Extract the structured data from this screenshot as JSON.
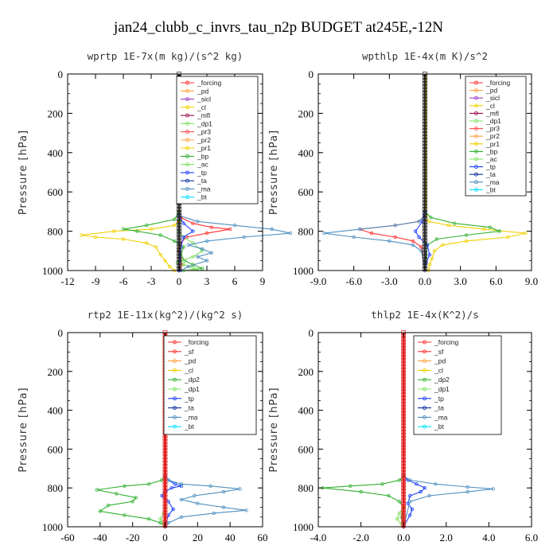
{
  "title": "jan24_clubb_c_invrs_tau_n2p  BUDGET at245E,-12N",
  "colors": {
    "forcing": "#000000",
    "pd": "#c8a2e8",
    "sicl": "#9a40c8",
    "cl": "#8a2090",
    "mfl": "#9a1050",
    "dp1": "#ff3030",
    "pr3": "#ff5050",
    "pr2": "#ffa040",
    "pr1": "#f0d000",
    "bp": "#30b030",
    "ac": "#80e060",
    "tp": "#2040ff",
    "ta": "#1030a0",
    "ma": "#5090c0",
    "bt": "#00e0ff",
    "sf": "#ff2020",
    "pd2": "#ffa040",
    "cl2": "#f0d000",
    "dp2": "#30b030",
    "dp1b": "#80e060"
  },
  "chart_data": [
    {
      "type": "line",
      "title": "wprtp   1E-7x(m kg)/(s^2 kg)",
      "ylabel": "Pressure [hPa]",
      "xlim": [
        -12,
        9
      ],
      "ylim": [
        1000,
        0
      ],
      "xticks": [
        -12,
        -9,
        -6,
        -3,
        0,
        3,
        6,
        9
      ],
      "xtick_labels": [
        "-12",
        "-9",
        "-6",
        "-3",
        "0",
        "3",
        "6",
        "9"
      ],
      "yticks": [
        0,
        200,
        400,
        600,
        800,
        1000
      ],
      "ytick_labels": [
        "0",
        "200",
        "400",
        "600",
        "800",
        "1000"
      ],
      "legend_position": "top-right",
      "legend": [
        "_forcing",
        "_pd",
        "_sicl",
        "_cl",
        "_mfl",
        "_dp1",
        "_pr3",
        "_pr2",
        "_pr1",
        "_bp",
        "_ac",
        "_tp",
        "_ta",
        "_ma",
        "_bt"
      ],
      "series": [
        {
          "name": "_forcing",
          "color": "forcing",
          "x": [
            0,
            0
          ],
          "y": [
            0,
            1000
          ]
        },
        {
          "name": "_pd",
          "color": "pd",
          "x": [
            0,
            0
          ],
          "y": [
            0,
            1000
          ]
        },
        {
          "name": "_dp1",
          "color": "dp1",
          "x": [
            0,
            0,
            0.2,
            1.5,
            3.5,
            5.5,
            3.0,
            0.8,
            0.2,
            0,
            0.2,
            0.3,
            0.1,
            0
          ],
          "y": [
            0,
            700,
            730,
            760,
            780,
            790,
            810,
            830,
            860,
            900,
            940,
            970,
            990,
            1000
          ]
        },
        {
          "name": "_pr1",
          "color": "pr1",
          "x": [
            0,
            0,
            -0.5,
            -3,
            -7,
            -10.5,
            -9,
            -6,
            -3.5,
            -2.5,
            -2.0,
            -1.5,
            -1.0,
            -0.5
          ],
          "y": [
            0,
            750,
            770,
            790,
            800,
            820,
            830,
            840,
            860,
            880,
            920,
            950,
            980,
            1000
          ]
        },
        {
          "name": "_bp",
          "color": "bp",
          "x": [
            0,
            0,
            -0.5,
            -3.5,
            -6,
            -4.5,
            -2,
            -0.5,
            0.5,
            0.2,
            0.6,
            1.5,
            2.5,
            0.5
          ],
          "y": [
            0,
            700,
            740,
            770,
            790,
            800,
            820,
            850,
            880,
            920,
            950,
            970,
            990,
            1000
          ]
        },
        {
          "name": "_ac",
          "color": "ac",
          "x": [
            0,
            0,
            0.5,
            1.5,
            2.5,
            1.5,
            0.3,
            -0.2,
            0.5,
            1.5,
            2.0,
            0.5
          ],
          "y": [
            0,
            800,
            830,
            860,
            900,
            930,
            950,
            960,
            970,
            985,
            995,
            1000
          ]
        },
        {
          "name": "_tp",
          "color": "tp",
          "x": [
            0,
            0,
            0.5,
            1.5,
            0.5,
            0.2,
            0.1,
            0
          ],
          "y": [
            0,
            720,
            760,
            800,
            830,
            880,
            950,
            1000
          ]
        },
        {
          "name": "_ma",
          "color": "ma",
          "x": [
            0,
            0,
            2,
            6,
            10,
            12,
            7,
            3,
            1,
            2.5,
            3.5,
            2.0,
            3.0,
            1.0,
            0.2
          ],
          "y": [
            0,
            720,
            750,
            770,
            790,
            810,
            830,
            850,
            870,
            890,
            910,
            930,
            950,
            980,
            1000
          ]
        }
      ]
    },
    {
      "type": "line",
      "title": "wpthlp   1E-4x(m K)/s^2",
      "ylabel": "Pressure [hPa]",
      "xlim": [
        -9,
        9
      ],
      "ylim": [
        1000,
        0
      ],
      "xticks": [
        -9,
        -6,
        -3,
        0,
        3,
        6,
        9
      ],
      "xtick_labels": [
        "-9.0",
        "-6.0",
        "-3.0",
        "0.0",
        "3.0",
        "6.0",
        "9.0"
      ],
      "yticks": [
        0,
        200,
        400,
        600,
        800,
        1000
      ],
      "ytick_labels": [
        "0",
        "200",
        "400",
        "600",
        "800",
        "1000"
      ],
      "legend_position": "top-right",
      "legend": [
        "_forcing",
        "_pd",
        "_sicl",
        "_cl",
        "_mfl",
        "_dp1",
        "_pr3",
        "_pr2",
        "_pr1",
        "_bp",
        "_ac",
        "_tp",
        "_ta",
        "_ma",
        "_bt"
      ],
      "series": [
        {
          "name": "_pr1",
          "color": "pr1",
          "x": [
            0.1,
            0.1,
            0.3,
            2,
            5,
            8.5,
            7,
            3.5,
            1.5,
            0.8,
            0.6,
            0.4,
            0.3
          ],
          "y": [
            0,
            720,
            750,
            770,
            790,
            810,
            830,
            850,
            870,
            900,
            940,
            970,
            1000
          ]
        },
        {
          "name": "_dp1",
          "color": "dp1",
          "x": [
            0,
            0,
            -0.5,
            -2.5,
            -5.5,
            -4.5,
            -2.5,
            -1.0,
            -0.3,
            0
          ],
          "y": [
            0,
            720,
            750,
            770,
            790,
            810,
            830,
            850,
            880,
            1000
          ]
        },
        {
          "name": "_bp",
          "color": "bp",
          "x": [
            0,
            0,
            0.5,
            2.5,
            5.5,
            6.3,
            3.5,
            1.0,
            0.2,
            0
          ],
          "y": [
            0,
            700,
            730,
            760,
            780,
            800,
            820,
            840,
            870,
            1000
          ]
        },
        {
          "name": "_ma",
          "color": "ma",
          "x": [
            0,
            0,
            -0.5,
            -2.5,
            -5.5,
            -8.5,
            -6,
            -3,
            -1,
            -0.3,
            0
          ],
          "y": [
            0,
            720,
            750,
            770,
            790,
            810,
            830,
            850,
            870,
            900,
            1000
          ]
        },
        {
          "name": "_tp",
          "color": "tp",
          "x": [
            0,
            0,
            -0.2,
            -0.8,
            -0.5,
            0.2,
            0.4,
            0.1,
            0
          ],
          "y": [
            0,
            700,
            750,
            800,
            830,
            870,
            920,
            960,
            1000
          ]
        },
        {
          "name": "_forcing",
          "color": "pd",
          "x": [
            0,
            0
          ],
          "y": [
            0,
            1000
          ]
        }
      ]
    },
    {
      "type": "line",
      "title": "rtp2   1E-11x(kg^2)/(kg^2 s)",
      "ylabel": "Pressure [hPa]",
      "xlim": [
        -60,
        60
      ],
      "ylim": [
        1000,
        0
      ],
      "xticks": [
        -60,
        -40,
        -20,
        0,
        20,
        40,
        60
      ],
      "xtick_labels": [
        "-60",
        "-40",
        "-20",
        "0",
        "20",
        "40",
        "60"
      ],
      "yticks": [
        0,
        200,
        400,
        600,
        800,
        1000
      ],
      "ytick_labels": [
        "0",
        "200",
        "400",
        "600",
        "800",
        "1000"
      ],
      "legend_position": "top-right",
      "legend": [
        "_forcing",
        "_sf",
        "_pd",
        "_cl",
        "_dp2",
        "_dp1",
        "_tp",
        "_ta",
        "_ma",
        "_bt"
      ],
      "series": [
        {
          "name": "_dp2",
          "color": "dp2",
          "x": [
            0,
            0,
            -2,
            -10,
            -25,
            -42,
            -30,
            -18,
            -20,
            -35,
            -40,
            -25,
            -10,
            -3,
            0
          ],
          "y": [
            0,
            740,
            760,
            780,
            790,
            810,
            830,
            850,
            870,
            890,
            920,
            940,
            960,
            980,
            1000
          ]
        },
        {
          "name": "_dp1",
          "color": "dp1b",
          "x": [
            0,
            0,
            -1,
            -3,
            -1,
            0
          ],
          "y": [
            0,
            900,
            930,
            960,
            985,
            1000
          ]
        },
        {
          "name": "_tp",
          "color": "tp",
          "x": [
            0,
            0,
            2,
            6,
            10,
            4,
            0,
            -2,
            2,
            5,
            2,
            0
          ],
          "y": [
            0,
            740,
            760,
            780,
            790,
            800,
            820,
            840,
            870,
            910,
            940,
            1000
          ]
        },
        {
          "name": "_ma",
          "color": "ma",
          "x": [
            0,
            0,
            2,
            10,
            28,
            46,
            36,
            18,
            10,
            20,
            36,
            50,
            30,
            10,
            2,
            0
          ],
          "y": [
            0,
            740,
            760,
            780,
            790,
            805,
            820,
            840,
            860,
            880,
            900,
            915,
            930,
            950,
            980,
            1000
          ]
        },
        {
          "name": "_forcing",
          "color": "dp1",
          "x": [
            0,
            0
          ],
          "y": [
            0,
            1000
          ]
        }
      ]
    },
    {
      "type": "line",
      "title": "thlp2   1E-4x(K^2)/s",
      "ylabel": "Pressure [hPa]",
      "xlim": [
        -4,
        6
      ],
      "ylim": [
        1000,
        0
      ],
      "xticks": [
        -4,
        -2,
        0,
        2,
        4,
        6
      ],
      "xtick_labels": [
        "-4.0",
        "-2.0",
        "0.0",
        "2.0",
        "4.0",
        "6.0"
      ],
      "yticks": [
        0,
        200,
        400,
        600,
        800,
        1000
      ],
      "ytick_labels": [
        "0",
        "200",
        "400",
        "600",
        "800",
        "1000"
      ],
      "legend_position": "top-right",
      "legend": [
        "_forcing",
        "_sf",
        "_pd",
        "_cl",
        "_dp2",
        "_dp1",
        "_tp",
        "_ta",
        "_ma",
        "_bt"
      ],
      "series": [
        {
          "name": "_dp2",
          "color": "dp2",
          "x": [
            0,
            0,
            -0.2,
            -1.0,
            -2.5,
            -3.8,
            -2.0,
            -0.7,
            -0.2,
            0,
            -0.1,
            0
          ],
          "y": [
            0,
            740,
            760,
            780,
            790,
            800,
            820,
            840,
            870,
            900,
            950,
            1000
          ]
        },
        {
          "name": "_dp1",
          "color": "dp1b",
          "x": [
            0,
            0,
            -0.2,
            -0.3,
            -0.1,
            0
          ],
          "y": [
            0,
            900,
            930,
            960,
            985,
            1000
          ]
        },
        {
          "name": "_tp",
          "color": "tp",
          "x": [
            0,
            0,
            0.2,
            0.6,
            1.0,
            0.8,
            0.3,
            0.2,
            0.4,
            0.3,
            0
          ],
          "y": [
            0,
            740,
            760,
            780,
            800,
            820,
            840,
            880,
            910,
            940,
            1000
          ]
        },
        {
          "name": "_ma",
          "color": "ma",
          "x": [
            0,
            0,
            0.3,
            1.5,
            3.0,
            4.2,
            3.0,
            1.2,
            0.3,
            0
          ],
          "y": [
            0,
            740,
            760,
            780,
            795,
            805,
            820,
            840,
            870,
            1000
          ]
        },
        {
          "name": "_forcing",
          "color": "dp1",
          "x": [
            0,
            0
          ],
          "y": [
            0,
            1000
          ]
        }
      ]
    }
  ]
}
